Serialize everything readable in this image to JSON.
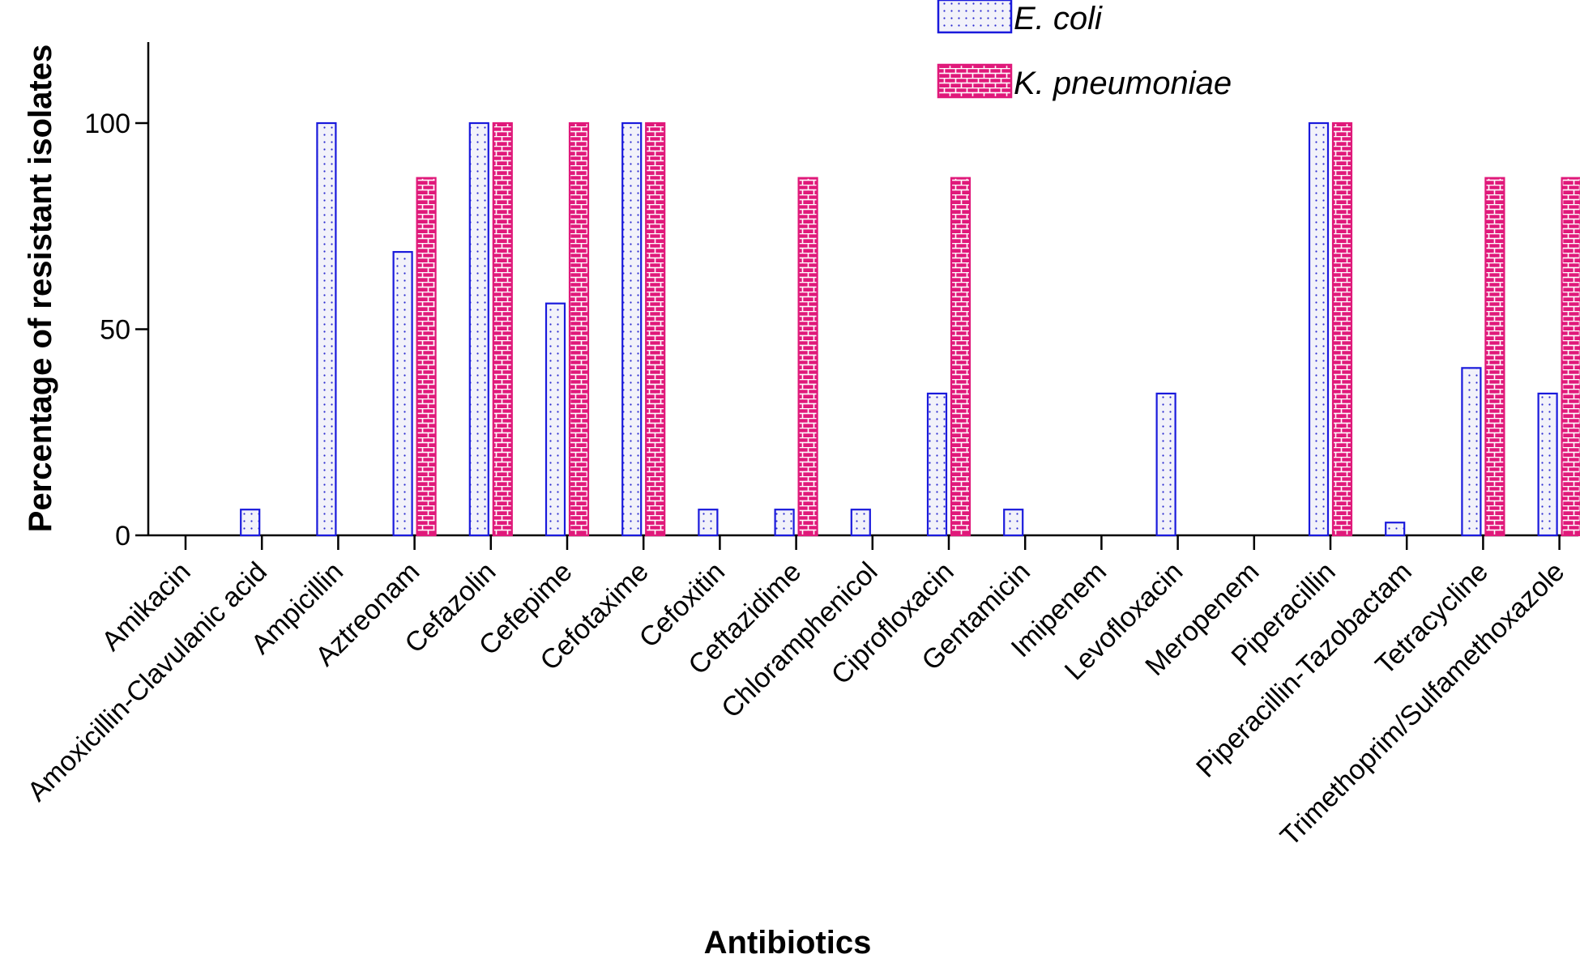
{
  "chart_data": {
    "type": "bar",
    "title": "",
    "xlabel": "Antibiotics",
    "ylabel": "Percentage of resistant isolates",
    "ylim": [
      0,
      120
    ],
    "yticks": [
      0,
      50,
      100
    ],
    "grid": false,
    "legend_position": "top-right",
    "categories": [
      "Amikacin",
      "Amoxicillin-Clavulanic acid",
      "Ampicillin",
      "Aztreonam",
      "Cefazolin",
      "Cefepime",
      "Cefotaxime",
      "Cefoxitin",
      "Ceftazidime",
      "Chloramphenicol",
      "Ciprofloxacin",
      "Gentamicin",
      "Imipenem",
      "Levofloxacin",
      "Meropenem",
      "Piperacillin",
      "Piperacillin-Tazobactam",
      "Tetracycline",
      "Trimethoprim/Sulfamethoxazole"
    ],
    "series": [
      {
        "name": "E. coli",
        "color": "#1a1adc",
        "fill_pattern": "dots",
        "values": [
          0,
          6.25,
          100,
          68.75,
          100,
          56.25,
          100,
          6.25,
          6.25,
          6.25,
          34.4,
          6.25,
          0,
          34.4,
          0,
          100,
          3.1,
          40.6,
          34.4
        ]
      },
      {
        "name": "K. pneumoniae",
        "color": "#e0197a",
        "fill_pattern": "bricks",
        "values": [
          0,
          0,
          0,
          86.7,
          100,
          100,
          100,
          0,
          86.7,
          0,
          86.7,
          0,
          0,
          0,
          0,
          100,
          0,
          86.7,
          86.7
        ]
      }
    ]
  }
}
